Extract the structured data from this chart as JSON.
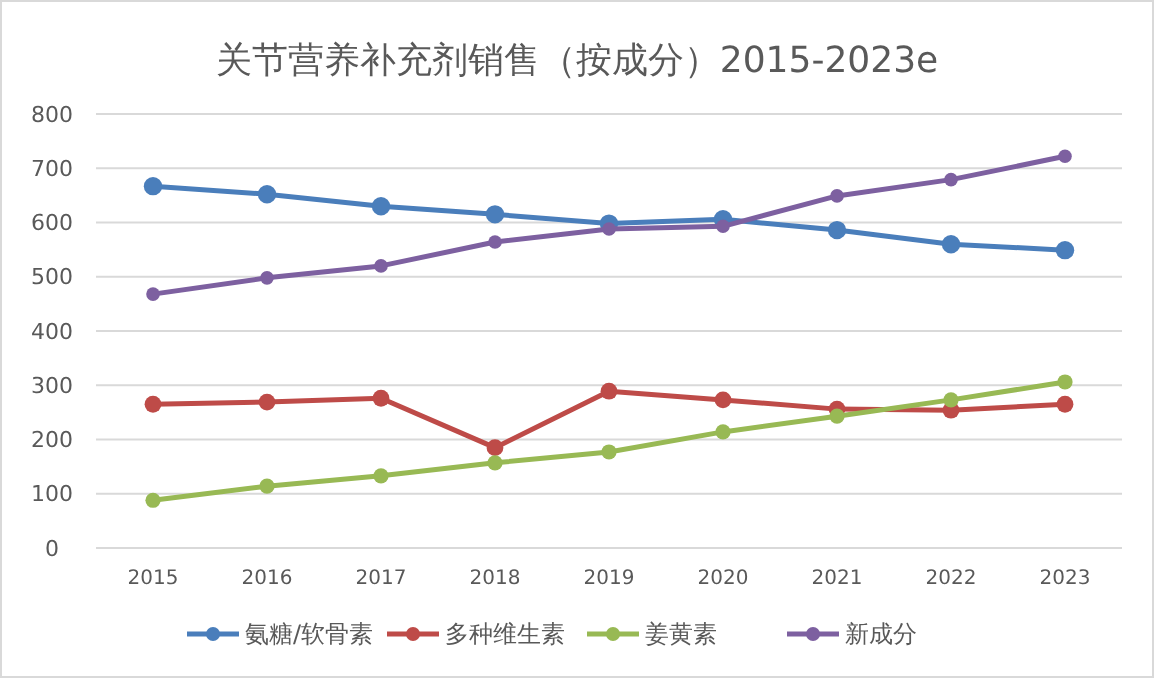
{
  "chart_data": {
    "type": "line",
    "title": "关节营养补充剂销售（按成分）2015-2023e",
    "categories": [
      "2015",
      "2016",
      "2017",
      "2018",
      "2019",
      "2020",
      "2021",
      "2022",
      "2023"
    ],
    "series": [
      {
        "name": "氨糖/软骨素",
        "color": "#4a7ebb",
        "values": [
          667,
          652,
          630,
          615,
          598,
          606,
          586,
          560,
          549
        ]
      },
      {
        "name": "多种维生素",
        "color": "#be4b48",
        "values": [
          265,
          269,
          276,
          185,
          289,
          273,
          256,
          254,
          265
        ]
      },
      {
        "name": "姜黄素",
        "color": "#98b954",
        "values": [
          88,
          114,
          133,
          157,
          177,
          214,
          243,
          273,
          306
        ]
      },
      {
        "name": "新成分",
        "color": "#7d60a0",
        "values": [
          468,
          498,
          520,
          564,
          588,
          593,
          649,
          679,
          722
        ]
      }
    ],
    "ylim": [
      0,
      800
    ],
    "yticks": [
      0,
      100,
      200,
      300,
      400,
      500,
      600,
      700,
      800
    ],
    "grid": "y",
    "legend": "bottom",
    "marker": "circle",
    "line_style": "solid"
  }
}
